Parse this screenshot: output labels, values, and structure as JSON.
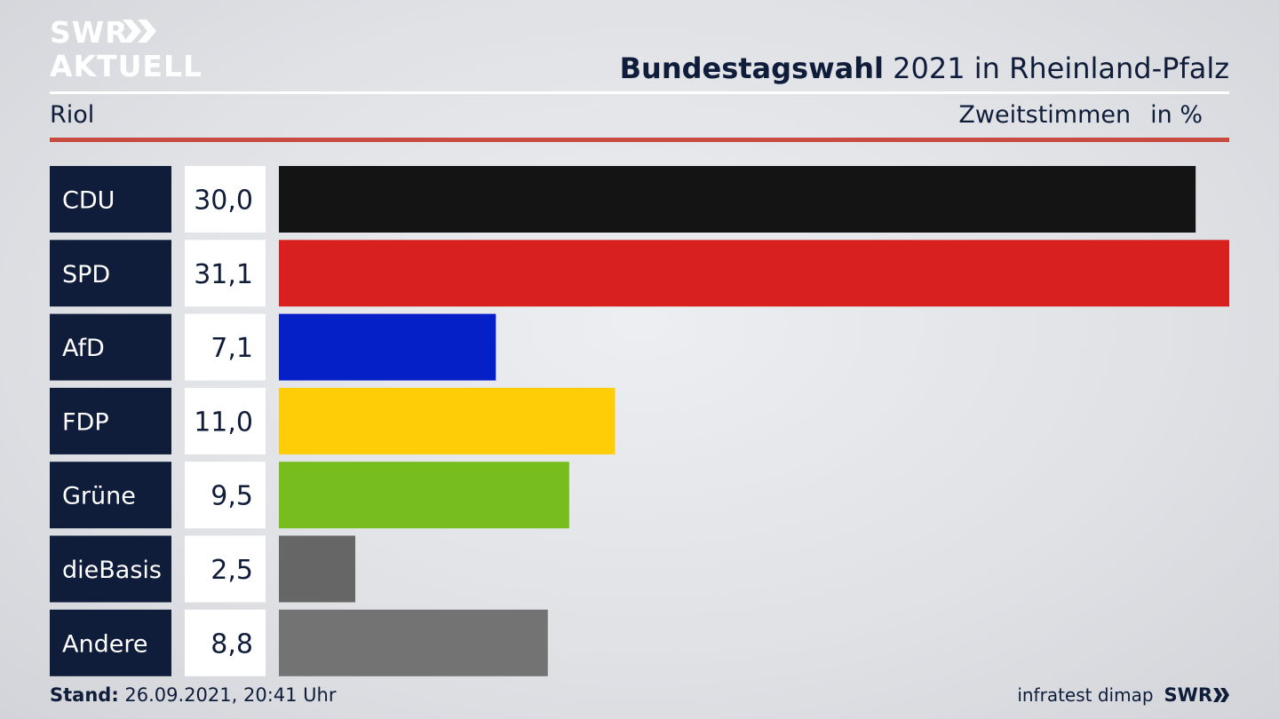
{
  "brand": {
    "line1": "SWR",
    "line2": "AKTUELL",
    "logo_color": "#ffffff"
  },
  "header": {
    "title_bold": "Bundestagswahl",
    "title_rest": " 2021 in Rheinland-Pfalz",
    "region": "Riol",
    "measure": "Zweitstimmen",
    "unit": "in %"
  },
  "chart_data": {
    "type": "bar",
    "orientation": "horizontal",
    "categories": [
      "CDU",
      "SPD",
      "AfD",
      "FDP",
      "Grüne",
      "dieBasis",
      "Andere"
    ],
    "values": [
      30.0,
      31.1,
      7.1,
      11.0,
      9.5,
      2.5,
      8.8
    ],
    "value_labels": [
      "30,0",
      "31,1",
      "7,1",
      "11,0",
      "9,5",
      "2,5",
      "8,8"
    ],
    "colors": [
      "#141414",
      "#d8201f",
      "#0520c7",
      "#ffcc08",
      "#78bd1e",
      "#666666",
      "#737373"
    ],
    "xlim": [
      0,
      31.1
    ],
    "grid": false,
    "legend": "none"
  },
  "footer": {
    "stand_label": "Stand:",
    "stand_value": " 26.09.2021, 20:41 Uhr",
    "source": "infratest dimap",
    "logo_small": "SWR"
  },
  "colors": {
    "navy": "#0f1d3a",
    "accent_red": "#c94a3f"
  }
}
